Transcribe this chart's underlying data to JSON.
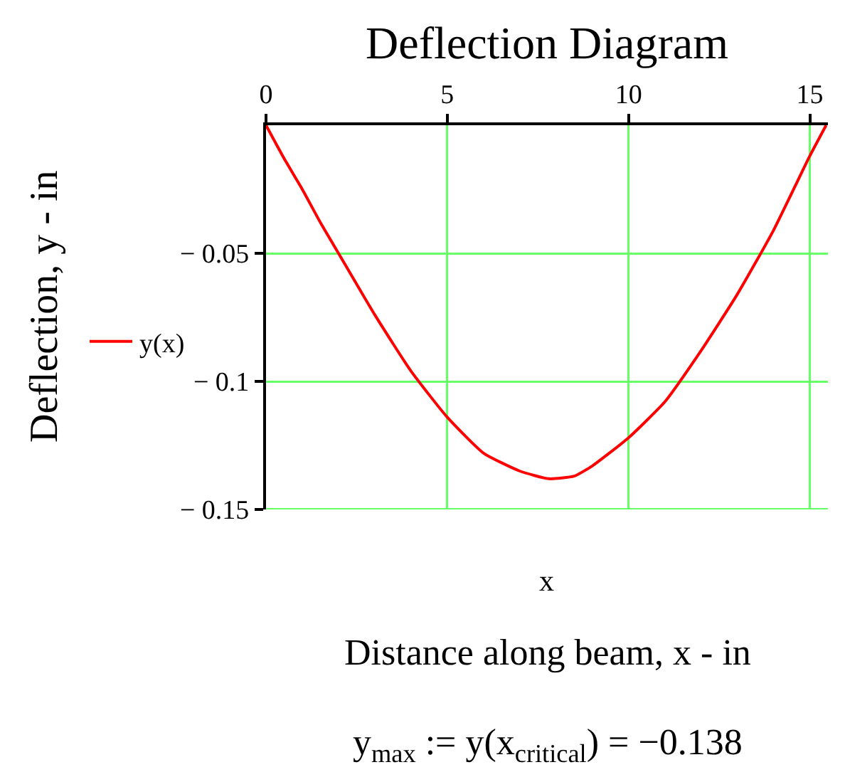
{
  "chart_data": {
    "type": "line",
    "title": "Deflection Diagram",
    "xlabel": "x",
    "ylabel": "Deflection, y - in",
    "annotations": [
      "Distance along beam, x - in",
      "y$_{max}$ := y(x$_{critical}$) = −0.138"
    ],
    "x": [
      0,
      0.5,
      1,
      1.5,
      2,
      3,
      4,
      5,
      6,
      7,
      7.8,
      8.5,
      9,
      10,
      11,
      12,
      13,
      14,
      15,
      15.45
    ],
    "series": [
      {
        "name": "y(x)",
        "color": "#ff0000",
        "values": [
          0,
          -0.013,
          -0.025,
          -0.038,
          -0.05,
          -0.074,
          -0.096,
          -0.114,
          -0.128,
          -0.135,
          -0.138,
          -0.137,
          -0.133,
          -0.122,
          -0.108,
          -0.088,
          -0.066,
          -0.041,
          -0.012,
          0
        ]
      }
    ],
    "xlim": [
      0,
      15.5
    ],
    "ylim": [
      -0.15,
      0
    ],
    "xticks": [
      0,
      5,
      10,
      15
    ],
    "yticks": [
      {
        "value": -0.15,
        "label": "− 0.15"
      },
      {
        "value": -0.1,
        "label": "− 0.1"
      },
      {
        "value": -0.05,
        "label": "− 0.05"
      }
    ],
    "grid": true,
    "legend": "left"
  }
}
